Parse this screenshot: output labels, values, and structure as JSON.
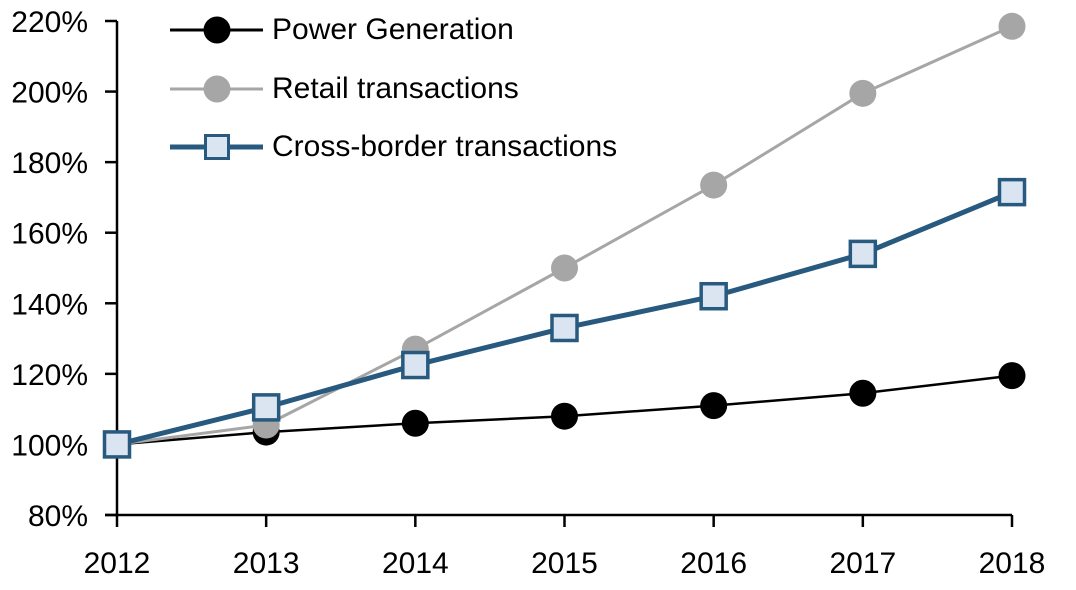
{
  "chart_data": {
    "type": "line",
    "title": "",
    "xlabel": "",
    "ylabel": "",
    "categories": [
      "2012",
      "2013",
      "2014",
      "2015",
      "2016",
      "2017",
      "2018"
    ],
    "series": [
      {
        "name": "Power Generation",
        "color": "#000000",
        "marker": "circle",
        "marker_fill": "#000000",
        "line_width": 2.5,
        "values": [
          100,
          103.5,
          106,
          108,
          111,
          114.5,
          119.5
        ]
      },
      {
        "name": "Retail transactions",
        "color": "#a6a6a6",
        "marker": "circle",
        "marker_fill": "#a6a6a6",
        "line_width": 3,
        "values": [
          100,
          105.5,
          127,
          150,
          173.5,
          199.5,
          218.5
        ]
      },
      {
        "name": "Cross-border transactions",
        "color": "#28597f",
        "marker": "square",
        "marker_fill": "#dbe5f1",
        "line_width": 5,
        "values": [
          100,
          110.5,
          122.5,
          133,
          142,
          154,
          171.5
        ]
      }
    ],
    "ylim": [
      80,
      220
    ],
    "ytick_step": 20,
    "ytick_labels": [
      "80%",
      "100%",
      "120%",
      "140%",
      "160%",
      "180%",
      "200%",
      "220%"
    ],
    "xtick_labels": [
      "2012",
      "2013",
      "2014",
      "2015",
      "2016",
      "2017",
      "2018"
    ],
    "grid": false,
    "legend_position": "top-left",
    "axis_color": "#000000"
  }
}
